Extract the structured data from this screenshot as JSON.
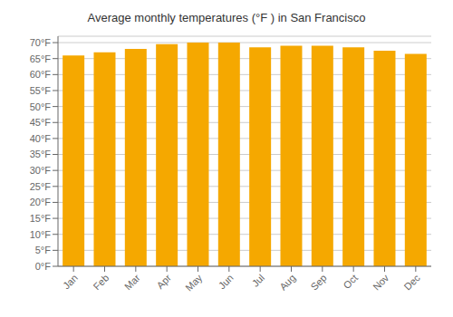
{
  "chart_data": {
    "type": "bar",
    "title": "Average monthly temperatures (°F ) in San Francisco",
    "categories": [
      "Jan",
      "Feb",
      "Mar",
      "Apr",
      "May",
      "Jun",
      "Jul",
      "Aug",
      "Sep",
      "Oct",
      "Nov",
      "Dec"
    ],
    "values": [
      66,
      67,
      68,
      69.5,
      70,
      70,
      68.5,
      69,
      69,
      68.5,
      67.5,
      66.5
    ],
    "color": "#F5A800",
    "ylim": [
      0,
      72
    ],
    "yticks": [
      {
        "value": 0,
        "label": "0°F"
      },
      {
        "value": 5,
        "label": "5°F"
      },
      {
        "value": 10,
        "label": "10°F"
      },
      {
        "value": 15,
        "label": "15°F"
      },
      {
        "value": 20,
        "label": "20°F"
      },
      {
        "value": 25,
        "label": "25°F"
      },
      {
        "value": 30,
        "label": "30°F"
      },
      {
        "value": 35,
        "label": "35°F"
      },
      {
        "value": 40,
        "label": "40°F"
      },
      {
        "value": 45,
        "label": "45°F"
      },
      {
        "value": 50,
        "label": "50°F"
      },
      {
        "value": 55,
        "label": "55°F"
      },
      {
        "value": 60,
        "label": "60°F"
      },
      {
        "value": 65,
        "label": "65°F"
      },
      {
        "value": 70,
        "label": "70°F"
      }
    ],
    "grid": true
  }
}
